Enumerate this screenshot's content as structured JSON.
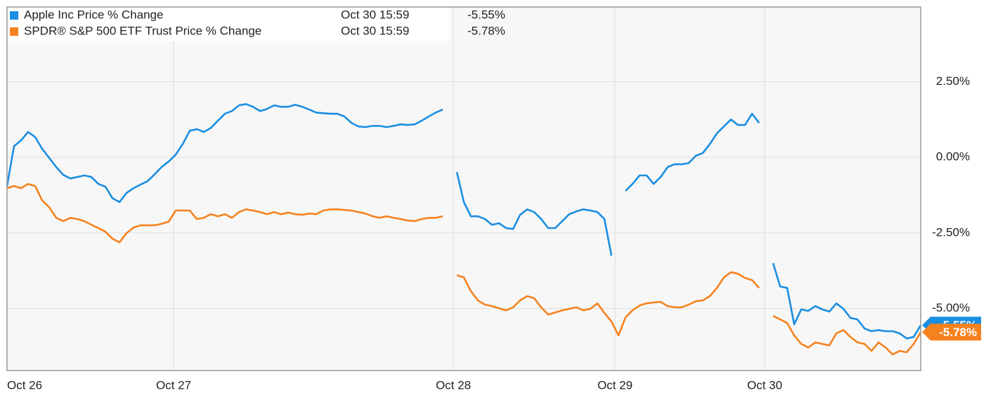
{
  "chart_data": {
    "type": "line",
    "x": [
      0,
      1,
      2,
      3,
      4,
      5,
      6,
      7,
      8,
      9,
      10,
      11,
      12,
      13,
      14,
      15,
      16,
      17,
      18,
      19,
      20,
      21,
      22,
      23,
      24,
      25,
      26,
      27,
      28,
      29,
      30,
      31,
      32,
      33,
      34,
      35,
      36,
      37,
      38,
      39,
      40,
      41,
      42,
      43,
      44,
      45,
      46,
      47,
      48,
      49,
      50,
      51,
      52,
      53,
      54,
      55,
      56,
      57,
      58,
      59,
      60,
      61,
      62,
      63,
      64,
      65,
      66,
      67,
      68,
      69,
      70,
      71,
      72,
      73,
      74,
      75,
      76,
      77,
      78,
      79,
      80,
      81,
      82,
      83,
      84,
      85,
      86,
      87,
      88,
      89,
      90,
      91,
      92,
      93,
      94,
      95,
      96,
      97,
      98,
      99,
      100,
      101,
      102,
      103,
      104,
      105,
      106,
      107,
      108,
      109,
      110,
      111,
      112,
      113,
      114,
      115,
      116,
      117,
      118,
      119,
      120,
      121,
      122,
      123,
      124,
      125,
      126,
      127,
      128,
      129,
      130
    ],
    "xlim": [
      0,
      130
    ],
    "xticks": [
      {
        "value": 0,
        "label": "Oct 26"
      },
      {
        "value": 23.7,
        "label": "Oct 27"
      },
      {
        "value": 63.5,
        "label": "Oct 28"
      },
      {
        "value": 86.5,
        "label": "Oct 29"
      },
      {
        "value": 107.8,
        "label": "Oct 30"
      }
    ],
    "ylim": [
      -7.05,
      4.97
    ],
    "yticks": [
      {
        "value": 2.5,
        "label": "2.50%"
      },
      {
        "value": 0,
        "label": "0.00%"
      },
      {
        "value": -2.5,
        "label": "-2.50%"
      },
      {
        "value": -5,
        "label": "-5.00%"
      }
    ],
    "grid": true,
    "series": [
      {
        "name": "Apple Inc Price % Change",
        "color": "#1a8ee1",
        "last_time": "Oct 30 15:59",
        "last_value_label": "-5.55%",
        "values": [
          -0.95,
          0.37,
          0.56,
          0.84,
          0.67,
          0.28,
          -0.02,
          -0.32,
          -0.58,
          -0.7,
          -0.65,
          -0.6,
          -0.65,
          -0.88,
          -0.97,
          -1.35,
          -1.48,
          -1.18,
          -1.02,
          -0.9,
          -0.79,
          -0.56,
          -0.32,
          -0.14,
          0.09,
          0.44,
          0.88,
          0.93,
          0.84,
          0.97,
          1.21,
          1.44,
          1.53,
          1.72,
          1.76,
          1.67,
          1.53,
          1.6,
          1.72,
          1.67,
          1.67,
          1.74,
          1.67,
          1.58,
          1.48,
          1.46,
          1.44,
          1.44,
          1.35,
          1.14,
          1.02,
          1.0,
          1.04,
          1.04,
          1.0,
          1.04,
          1.09,
          1.07,
          1.09,
          1.21,
          1.35,
          1.48,
          1.58,
          null,
          -0.49,
          -1.48,
          -1.95,
          -1.95,
          -2.04,
          -2.23,
          -2.18,
          -2.34,
          -2.37,
          -1.9,
          -1.72,
          -1.81,
          -2.04,
          -2.34,
          -2.34,
          -2.11,
          -1.88,
          -1.79,
          -1.72,
          -1.76,
          -1.81,
          -2.04,
          -3.25,
          null,
          -1.11,
          -0.88,
          -0.6,
          -0.6,
          -0.88,
          -0.65,
          -0.32,
          -0.23,
          -0.23,
          -0.19,
          0.05,
          0.14,
          0.44,
          0.79,
          1.02,
          1.25,
          1.07,
          1.07,
          1.44,
          1.14,
          null,
          -3.5,
          -4.27,
          -4.32,
          -5.52,
          -5.03,
          -5.08,
          -4.92,
          -5.03,
          -5.1,
          -4.83,
          -5.01,
          -5.31,
          -5.36,
          -5.66,
          -5.75,
          -5.71,
          -5.75,
          -5.75,
          -5.82,
          -5.99,
          -5.94,
          -5.55
        ]
      },
      {
        "name": "SPDR® S&P 500 ETF Trust Price % Change",
        "color": "#f5821f",
        "last_time": "Oct 30 15:59",
        "last_value_label": "-5.78%",
        "values": [
          -1.02,
          -0.95,
          -1.02,
          -0.88,
          -0.95,
          -1.42,
          -1.65,
          -2.0,
          -2.11,
          -2.0,
          -2.04,
          -2.11,
          -2.23,
          -2.34,
          -2.46,
          -2.69,
          -2.81,
          -2.51,
          -2.32,
          -2.25,
          -2.25,
          -2.25,
          -2.2,
          -2.13,
          -1.76,
          -1.76,
          -1.76,
          -2.04,
          -2.0,
          -1.88,
          -1.95,
          -1.88,
          -2.0,
          -1.81,
          -1.72,
          -1.76,
          -1.81,
          -1.88,
          -1.81,
          -1.88,
          -1.83,
          -1.88,
          -1.9,
          -1.86,
          -1.88,
          -1.76,
          -1.72,
          -1.72,
          -1.74,
          -1.76,
          -1.81,
          -1.86,
          -1.95,
          -2.0,
          -1.95,
          -2.0,
          -2.04,
          -2.09,
          -2.11,
          -2.04,
          -2.0,
          -2.0,
          -1.95,
          null,
          -3.9,
          -3.97,
          -4.43,
          -4.73,
          -4.87,
          -4.92,
          -4.99,
          -5.06,
          -4.96,
          -4.73,
          -4.59,
          -4.66,
          -4.96,
          -5.2,
          -5.13,
          -5.06,
          -5.01,
          -4.96,
          -5.06,
          -5.01,
          -4.83,
          -5.15,
          -5.43,
          -5.89,
          -5.29,
          -5.06,
          -4.9,
          -4.83,
          -4.8,
          -4.78,
          -4.92,
          -4.96,
          -4.96,
          -4.87,
          -4.76,
          -4.73,
          -4.59,
          -4.32,
          -3.97,
          -3.8,
          -3.85,
          -3.99,
          -4.06,
          -4.32,
          null,
          -5.24,
          -5.36,
          -5.48,
          -5.89,
          -6.17,
          -6.29,
          -6.12,
          -6.17,
          -6.22,
          -5.82,
          -5.71,
          -5.94,
          -6.12,
          -6.17,
          -6.4,
          -6.12,
          -6.29,
          -6.52,
          -6.4,
          -6.45,
          -6.17,
          -5.78
        ]
      }
    ]
  }
}
